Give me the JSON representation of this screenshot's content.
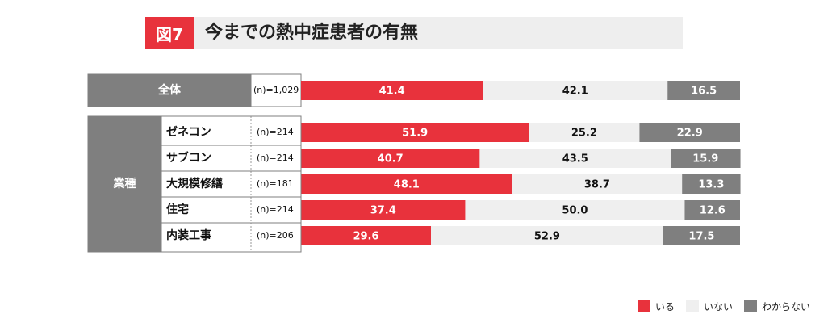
{
  "title": {
    "fig_label": "図7",
    "text": "今までの熱中症患者の有無"
  },
  "colors": {
    "iru": "#e8323c",
    "inai": "#efefef",
    "wakaranai": "#7f7f7f",
    "label_bg": "#7f7f7f",
    "title_tag": "#e8323c"
  },
  "chart_data": {
    "type": "bar",
    "stacked": true,
    "orientation": "horizontal",
    "unit": "%",
    "series_names": [
      "いる",
      "いない",
      "わからない"
    ],
    "groups": [
      {
        "name": "全体",
        "rows": [
          {
            "label": "",
            "n": "(n)=1,029",
            "values": [
              41.4,
              42.1,
              16.5
            ]
          }
        ]
      },
      {
        "name": "業種",
        "rows": [
          {
            "label": "ゼネコン",
            "n": "(n)=214",
            "values": [
              51.9,
              25.2,
              22.9
            ]
          },
          {
            "label": "サブコン",
            "n": "(n)=214",
            "values": [
              40.7,
              43.5,
              15.9
            ]
          },
          {
            "label": "大規模修繕",
            "n": "(n)=181",
            "values": [
              48.1,
              38.7,
              13.3
            ]
          },
          {
            "label": "住宅",
            "n": "(n)=214",
            "values": [
              37.4,
              50.0,
              12.6
            ]
          },
          {
            "label": "内装工事",
            "n": "(n)=206",
            "values": [
              29.6,
              52.9,
              17.5
            ]
          }
        ]
      }
    ],
    "legend": {
      "position": "bottom-right",
      "entries": [
        "いる",
        "いない",
        "わからない"
      ]
    }
  }
}
